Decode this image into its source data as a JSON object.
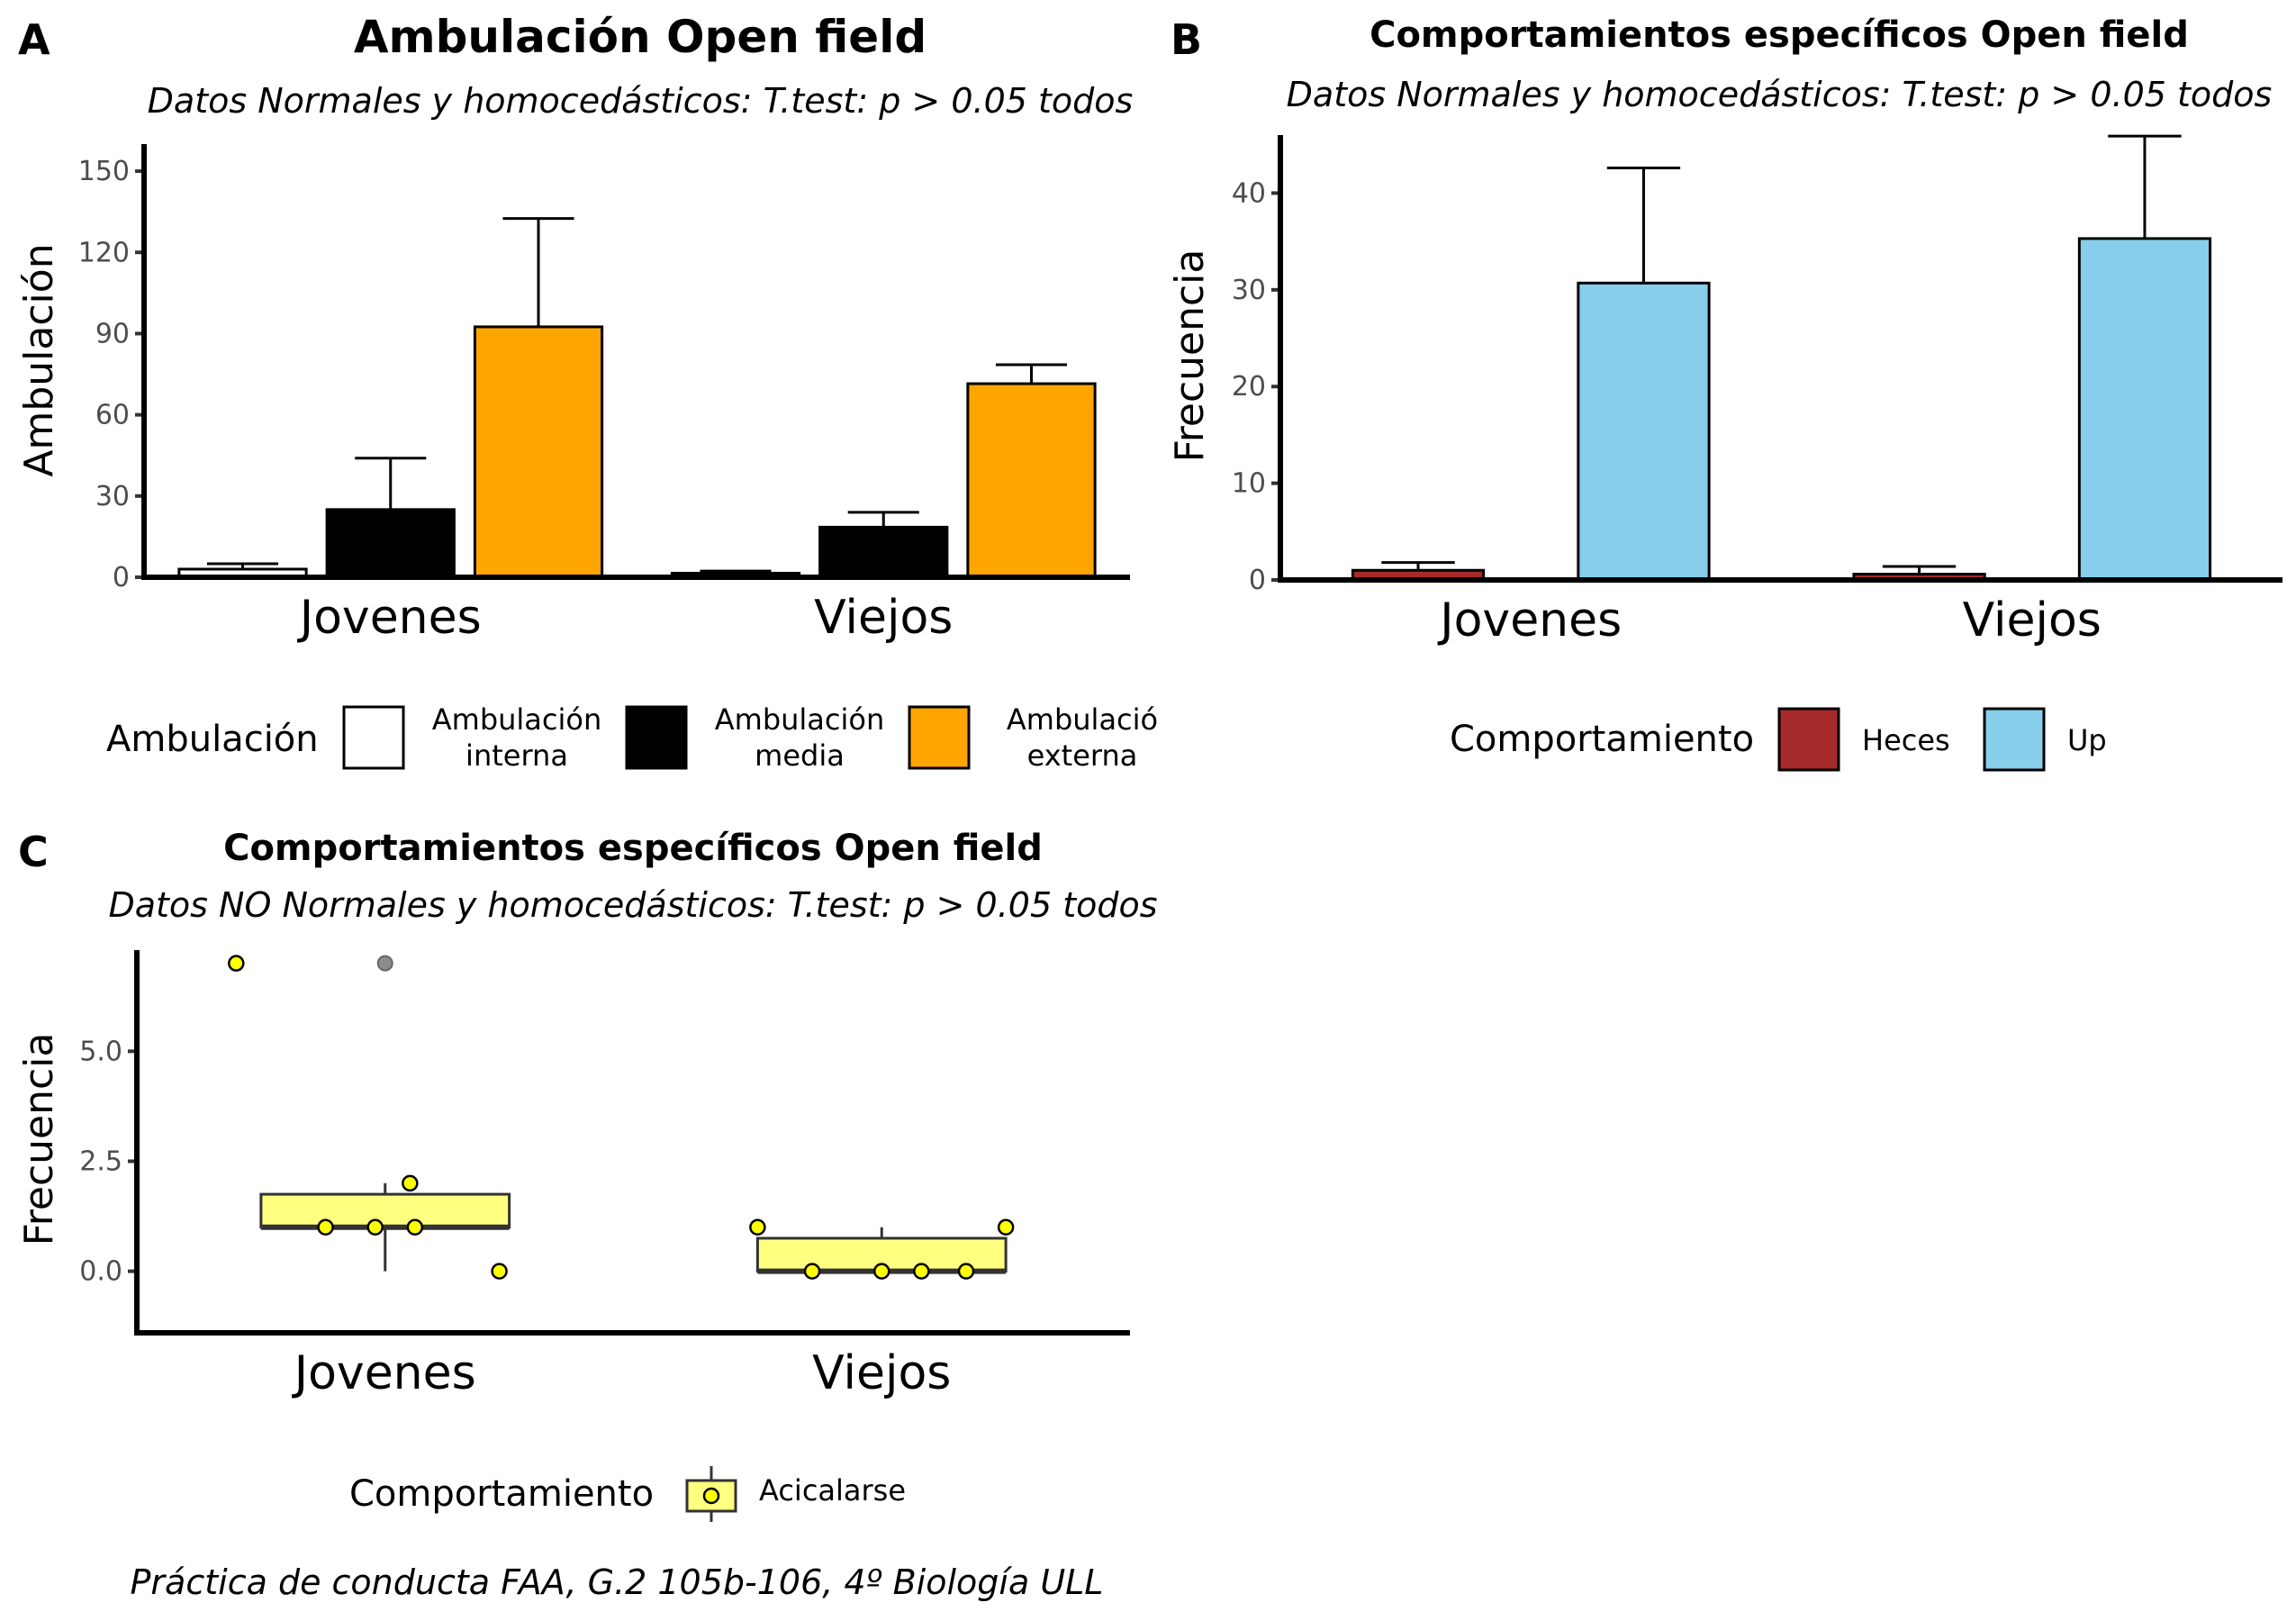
{
  "caption": "Práctica de conducta FAA, G.2 105b-106, 4º Biología ULL",
  "chart_data": [
    {
      "type": "bar",
      "panel": "A",
      "title": "Ambulación Open field",
      "subtitle": "Datos Normales y homocedásticos: T.test: p > 0.05 todos",
      "xlabel": "",
      "ylabel": "Ambulación",
      "ylim": [
        0,
        160
      ],
      "yticks": [
        0,
        30,
        60,
        90,
        120,
        150
      ],
      "categories": [
        "Jovenes",
        "Viejos"
      ],
      "legend_title": "Ambulación",
      "series": [
        {
          "name": "Ambulación interna",
          "legend_lines": [
            "Ambulación",
            "interna"
          ],
          "color": "#FFFFFF",
          "values": [
            3,
            1.5
          ],
          "errors": [
            2,
            0.8
          ]
        },
        {
          "name": "Ambulación media",
          "legend_lines": [
            "Ambulación",
            "media"
          ],
          "color": "#000000",
          "values": [
            25,
            18.5
          ],
          "errors": [
            19,
            5.5
          ]
        },
        {
          "name": "Ambulación externa",
          "legend_lines": [
            "Ambulació",
            "externa"
          ],
          "color": "#FFA500",
          "values": [
            92.5,
            71.5
          ],
          "errors": [
            40,
            7
          ]
        }
      ]
    },
    {
      "type": "bar",
      "panel": "B",
      "title": "Comportamientos específicos Open field",
      "subtitle": "Datos Normales y homocedásticos: T.test: p > 0.05 todos",
      "xlabel": "",
      "ylabel": "Frecuencia",
      "ylim": [
        0,
        46
      ],
      "yticks": [
        0,
        10,
        20,
        30,
        40
      ],
      "categories": [
        "Jovenes",
        "Viejos"
      ],
      "legend_title": "Comportamiento",
      "series": [
        {
          "name": "Heces",
          "color": "#A52A2A",
          "values": [
            1,
            0.6
          ],
          "errors": [
            0.8,
            0.8
          ]
        },
        {
          "name": "Up",
          "color": "#87CEEB",
          "values": [
            30.7,
            35.3
          ],
          "errors": [
            11.9,
            10.6
          ]
        }
      ]
    },
    {
      "type": "boxplot",
      "panel": "C",
      "title": "Comportamientos específicos Open field",
      "subtitle": "Datos NO Normales y homocedásticos: T.test: p > 0.05 todos",
      "xlabel": "",
      "ylabel": "Frecuencia",
      "ylim": [
        -1.4,
        7.3
      ],
      "yticks": [
        0.0,
        2.5,
        5.0
      ],
      "ytick_labels": [
        "0.0",
        "2.5",
        "5.0"
      ],
      "categories": [
        "Jovenes",
        "Viejos"
      ],
      "legend_title": "Comportamiento",
      "series_name": "Acicalarse",
      "box_color": "#FFFF80",
      "point_color": "#FFFF00",
      "boxes": [
        {
          "category": "Jovenes",
          "q1": 1.0,
          "median": 1.0,
          "q3": 1.75,
          "whisker_low": 0,
          "whisker_high": 2,
          "outliers": [
            7
          ]
        },
        {
          "category": "Viejos",
          "q1": 0,
          "median": 0,
          "q3": 0.75,
          "whisker_low": 0,
          "whisker_high": 1,
          "outliers": []
        }
      ],
      "points": [
        {
          "category": "Jovenes",
          "y": 7,
          "jitter": -0.3
        },
        {
          "category": "Jovenes",
          "y": 2,
          "jitter": 0.05
        },
        {
          "category": "Jovenes",
          "y": 1,
          "jitter": -0.12
        },
        {
          "category": "Jovenes",
          "y": 1,
          "jitter": -0.02
        },
        {
          "category": "Jovenes",
          "y": 1,
          "jitter": 0.06
        },
        {
          "category": "Jovenes",
          "y": 0,
          "jitter": 0.23
        },
        {
          "category": "Viejos",
          "y": 1,
          "jitter": -0.25
        },
        {
          "category": "Viejos",
          "y": 1,
          "jitter": 0.25
        },
        {
          "category": "Viejos",
          "y": 0,
          "jitter": -0.14
        },
        {
          "category": "Viejos",
          "y": 0,
          "jitter": 0.0
        },
        {
          "category": "Viejos",
          "y": 0,
          "jitter": 0.08
        },
        {
          "category": "Viejos",
          "y": 0,
          "jitter": 0.17
        }
      ]
    }
  ]
}
